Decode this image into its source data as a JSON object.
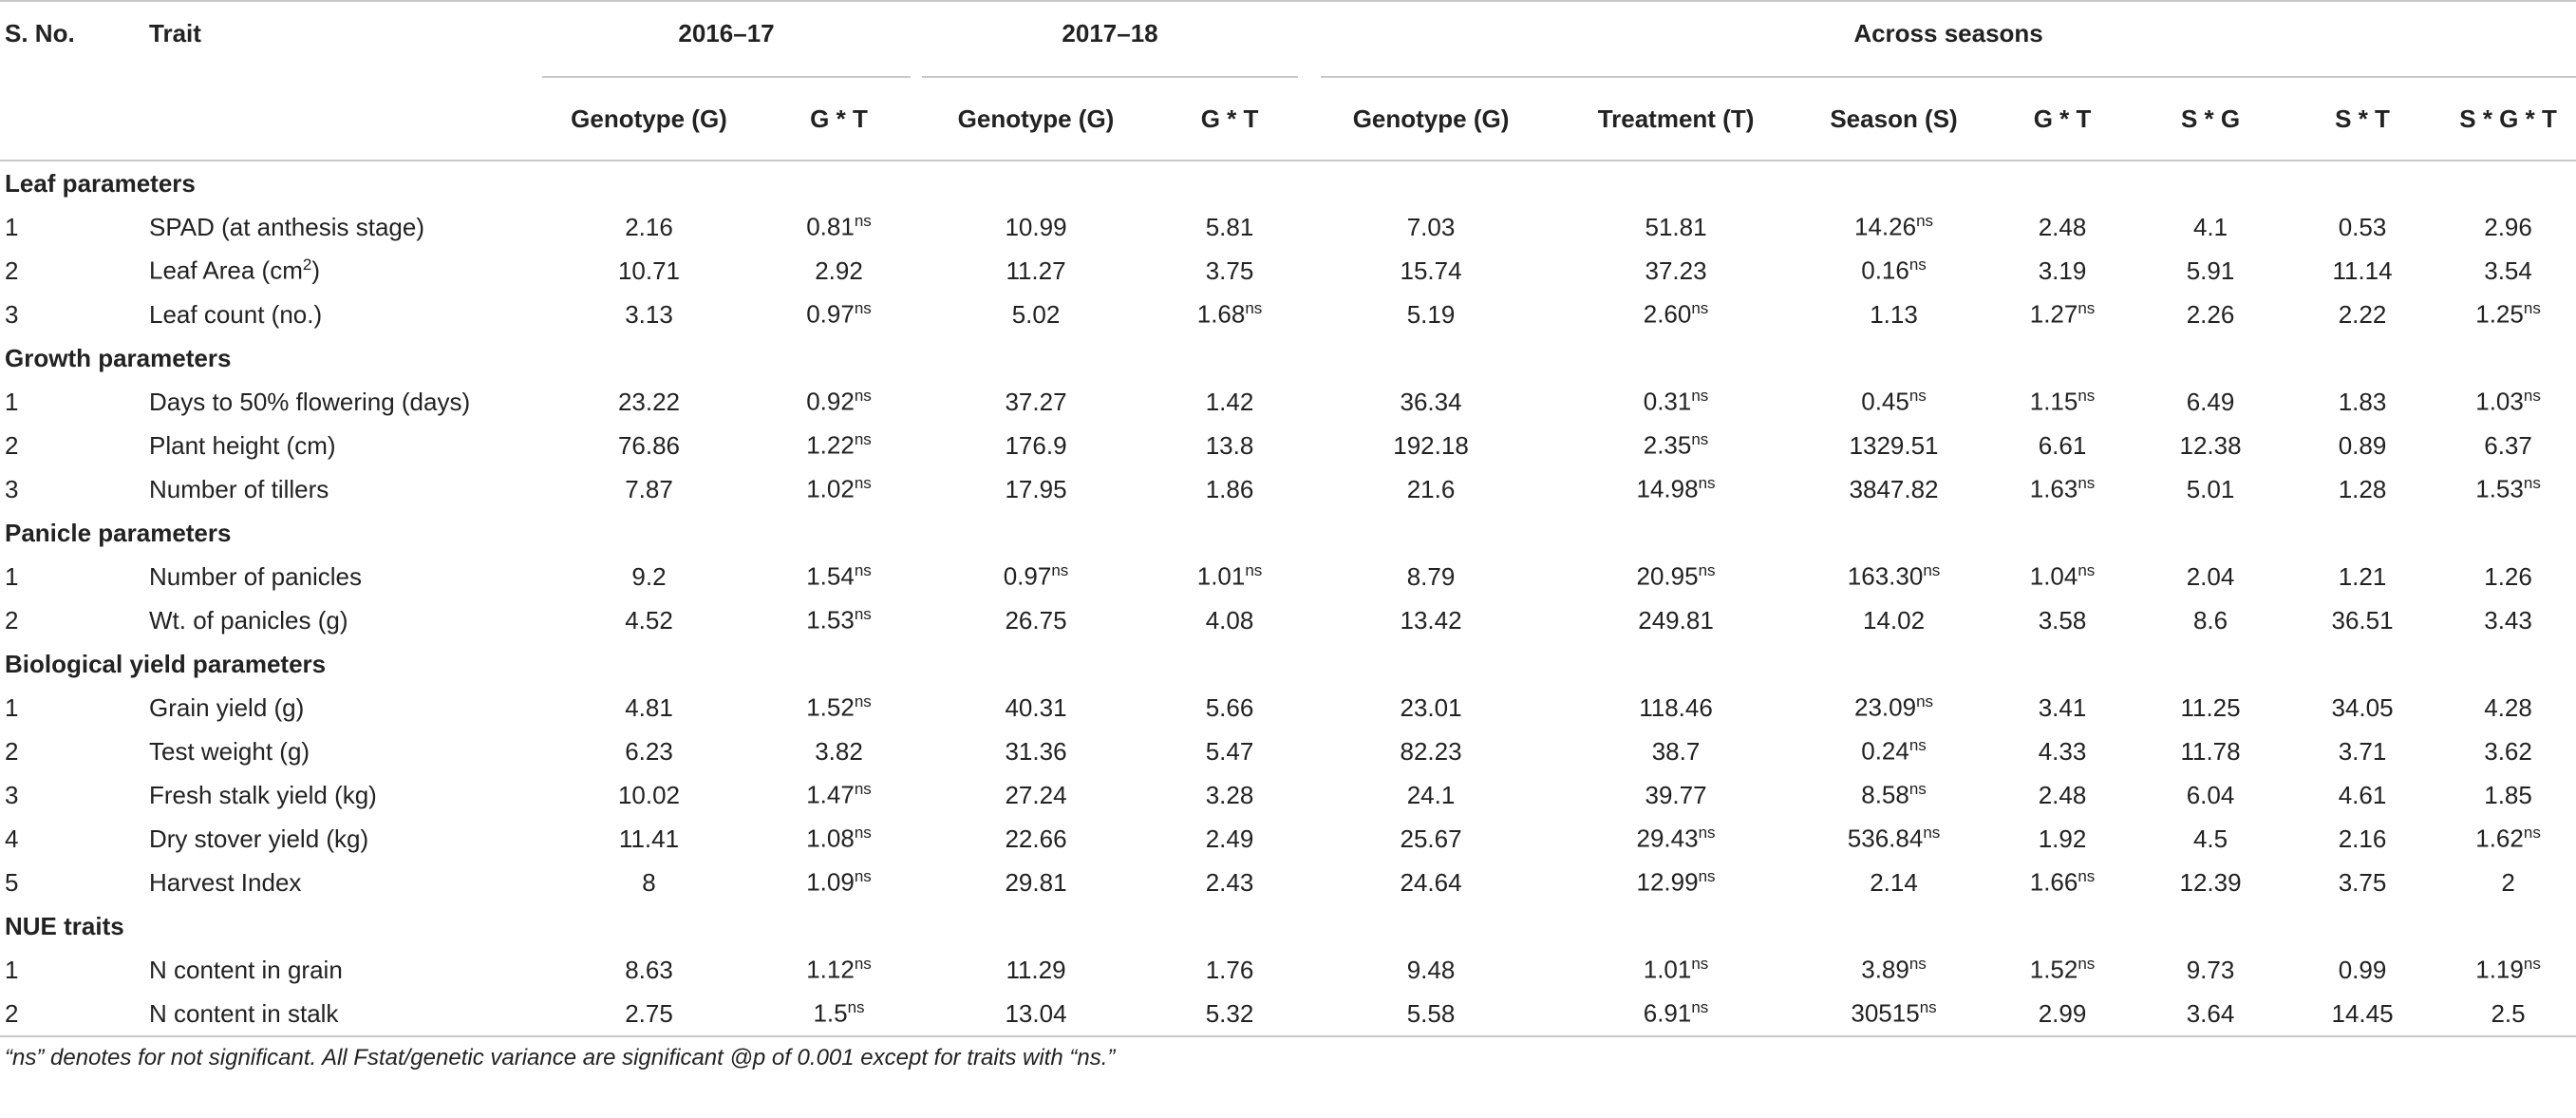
{
  "table": {
    "corner": [
      "S. No.",
      "Trait"
    ],
    "groups": [
      "2016–17",
      "2017–18",
      "Across seasons"
    ],
    "columns": [
      "Genotype (G)",
      "G * T",
      "Genotype (G)",
      "G * T",
      "Genotype (G)",
      "Treatment (T)",
      "Season (S)",
      "G * T",
      "S * G",
      "S * T",
      "S * G * T"
    ],
    "sections": [
      {
        "title": "Leaf parameters",
        "rows": [
          {
            "no": "1",
            "trait": "SPAD (at anthesis stage)",
            "cells": [
              "2.16",
              {
                "v": "0.81",
                "sup": "ns"
              },
              "10.99",
              "5.81",
              "7.03",
              "51.81",
              {
                "v": "14.26",
                "sup": "ns"
              },
              "2.48",
              "4.1",
              "0.53",
              "2.96"
            ]
          },
          {
            "no": "2",
            "trait": {
              "text": "Leaf Area (cm",
              "sup": "2",
              "after": ")"
            },
            "cells": [
              "10.71",
              "2.92",
              "11.27",
              "3.75",
              "15.74",
              "37.23",
              {
                "v": "0.16",
                "sup": "ns"
              },
              "3.19",
              "5.91",
              "11.14",
              "3.54"
            ]
          },
          {
            "no": "3",
            "trait": "Leaf count (no.)",
            "cells": [
              "3.13",
              {
                "v": "0.97",
                "sup": "ns"
              },
              "5.02",
              {
                "v": "1.68",
                "sup": "ns"
              },
              "5.19",
              {
                "v": "2.60",
                "sup": "ns"
              },
              "1.13",
              {
                "v": "1.27",
                "sup": "ns"
              },
              "2.26",
              "2.22",
              {
                "v": "1.25",
                "sup": "ns"
              }
            ]
          }
        ]
      },
      {
        "title": "Growth parameters",
        "rows": [
          {
            "no": "1",
            "trait": "Days to 50% flowering (days)",
            "cells": [
              "23.22",
              {
                "v": "0.92",
                "sup": "ns"
              },
              "37.27",
              "1.42",
              "36.34",
              {
                "v": "0.31",
                "sup": "ns"
              },
              {
                "v": "0.45",
                "sup": "ns"
              },
              {
                "v": "1.15",
                "sup": "ns"
              },
              "6.49",
              "1.83",
              {
                "v": "1.03",
                "sup": "ns"
              }
            ]
          },
          {
            "no": "2",
            "trait": "Plant height (cm)",
            "cells": [
              "76.86",
              {
                "v": "1.22",
                "sup": "ns"
              },
              "176.9",
              "13.8",
              "192.18",
              {
                "v": "2.35",
                "sup": "ns"
              },
              "1329.51",
              "6.61",
              "12.38",
              "0.89",
              "6.37"
            ]
          },
          {
            "no": "3",
            "trait": "Number of tillers",
            "cells": [
              "7.87",
              {
                "v": "1.02",
                "sup": "ns"
              },
              "17.95",
              "1.86",
              "21.6",
              {
                "v": "14.98",
                "sup": "ns"
              },
              "3847.82",
              {
                "v": "1.63",
                "sup": "ns"
              },
              "5.01",
              "1.28",
              {
                "v": "1.53",
                "sup": "ns"
              }
            ]
          }
        ]
      },
      {
        "title": "Panicle parameters",
        "rows": [
          {
            "no": "1",
            "trait": "Number of panicles",
            "cells": [
              "9.2",
              {
                "v": "1.54",
                "sup": "ns"
              },
              {
                "v": "0.97",
                "sup": "ns"
              },
              {
                "v": "1.01",
                "sup": "ns"
              },
              "8.79",
              {
                "v": "20.95",
                "sup": "ns"
              },
              {
                "v": "163.30",
                "sup": "ns"
              },
              {
                "v": "1.04",
                "sup": "ns"
              },
              "2.04",
              "1.21",
              "1.26"
            ]
          },
          {
            "no": "2",
            "trait": "Wt. of panicles (g)",
            "cells": [
              "4.52",
              {
                "v": "1.53",
                "sup": "ns"
              },
              "26.75",
              "4.08",
              "13.42",
              "249.81",
              "14.02",
              "3.58",
              "8.6",
              "36.51",
              "3.43"
            ]
          }
        ]
      },
      {
        "title": "Biological yield parameters",
        "rows": [
          {
            "no": "1",
            "trait": "Grain yield (g)",
            "cells": [
              "4.81",
              {
                "v": "1.52",
                "sup": "ns"
              },
              "40.31",
              "5.66",
              "23.01",
              "118.46",
              {
                "v": "23.09",
                "sup": "ns"
              },
              "3.41",
              "11.25",
              "34.05",
              "4.28"
            ]
          },
          {
            "no": "2",
            "trait": "Test weight (g)",
            "cells": [
              "6.23",
              "3.82",
              "31.36",
              "5.47",
              "82.23",
              "38.7",
              {
                "v": "0.24",
                "sup": "ns"
              },
              "4.33",
              "11.78",
              "3.71",
              "3.62"
            ]
          },
          {
            "no": "3",
            "trait": "Fresh stalk yield (kg)",
            "cells": [
              "10.02",
              {
                "v": "1.47",
                "sup": "ns"
              },
              "27.24",
              "3.28",
              "24.1",
              "39.77",
              {
                "v": "8.58",
                "sup": "ns"
              },
              "2.48",
              "6.04",
              "4.61",
              "1.85"
            ]
          },
          {
            "no": "4",
            "trait": "Dry stover yield (kg)",
            "cells": [
              "11.41",
              {
                "v": "1.08",
                "sup": "ns"
              },
              "22.66",
              "2.49",
              "25.67",
              {
                "v": "29.43",
                "sup": "ns"
              },
              {
                "v": "536.84",
                "sup": "ns"
              },
              "1.92",
              "4.5",
              "2.16",
              {
                "v": "1.62",
                "sup": "ns"
              }
            ]
          },
          {
            "no": "5",
            "trait": "Harvest Index",
            "cells": [
              "8",
              {
                "v": "1.09",
                "sup": "ns"
              },
              "29.81",
              "2.43",
              "24.64",
              {
                "v": "12.99",
                "sup": "ns"
              },
              "2.14",
              {
                "v": "1.66",
                "sup": "ns"
              },
              "12.39",
              "3.75",
              "2"
            ]
          }
        ]
      },
      {
        "title": "NUE traits",
        "rows": [
          {
            "no": "1",
            "trait": "N content in grain",
            "cells": [
              "8.63",
              {
                "v": "1.12",
                "sup": "ns"
              },
              "11.29",
              "1.76",
              "9.48",
              {
                "v": "1.01",
                "sup": "ns"
              },
              {
                "v": "3.89",
                "sup": "ns"
              },
              {
                "v": "1.52",
                "sup": "ns"
              },
              "9.73",
              "0.99",
              {
                "v": "1.19",
                "sup": "ns"
              }
            ]
          },
          {
            "no": "2",
            "trait": "N content in stalk",
            "cells": [
              "2.75",
              {
                "v": "1.5",
                "sup": "ns"
              },
              "13.04",
              "5.32",
              "5.58",
              {
                "v": "6.91",
                "sup": "ns"
              },
              {
                "v": "30515",
                "sup": "ns"
              },
              "2.99",
              "3.64",
              "14.45",
              "2.5"
            ]
          }
        ]
      }
    ]
  },
  "footnote": "“ns” denotes for not significant. All Fstat/genetic variance are significant @p of 0.001 except for traits with “ns.”"
}
